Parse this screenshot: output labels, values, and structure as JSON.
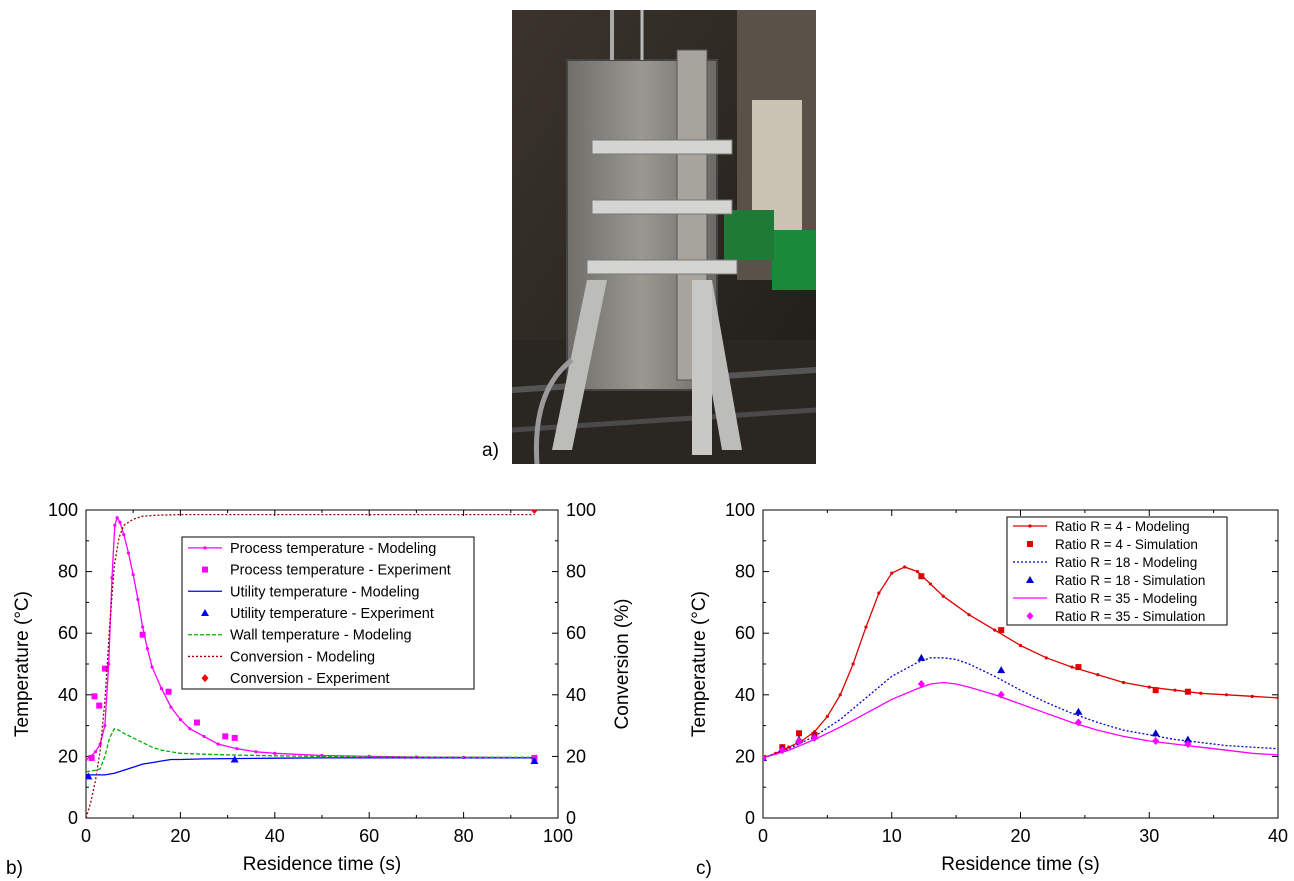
{
  "panels": {
    "a": "a)",
    "b": "b)",
    "c": "c)"
  },
  "photo": {
    "description_icon": "reactor-photo"
  },
  "chart_data": [
    {
      "id": "b",
      "type": "line",
      "xlabel": "Residence time (s)",
      "ylabel": "Temperature (°C)",
      "y2label": "Conversion (%)",
      "xlim": [
        0,
        100
      ],
      "ylim": [
        0,
        100
      ],
      "y2lim": [
        0,
        100
      ],
      "xticks": [
        0,
        20,
        40,
        60,
        80,
        100
      ],
      "yticks": [
        0,
        20,
        40,
        60,
        80,
        100
      ],
      "y2ticks": [
        0,
        20,
        40,
        60,
        80,
        100
      ],
      "legend_position": "top-right",
      "series": [
        {
          "name": "Process temperature - Modeling",
          "kind": "line",
          "color": "#ff00ff",
          "dash": "",
          "marker": "dot",
          "x": [
            0,
            1,
            2,
            3,
            4,
            4.8,
            5.5,
            6.1,
            6.6,
            7.2,
            8,
            9,
            10,
            11,
            12,
            13,
            14,
            16,
            18,
            20,
            22,
            25,
            28,
            32,
            36,
            40,
            50,
            60,
            70,
            80,
            95
          ],
          "y": [
            19,
            20,
            21.5,
            24,
            30,
            50,
            78,
            95,
            97.5,
            96,
            92,
            86,
            79,
            71,
            62,
            55,
            49,
            42,
            36,
            32,
            29,
            26.5,
            24,
            22.5,
            21.5,
            21,
            20.3,
            20,
            19.8,
            19.7,
            19.6
          ]
        },
        {
          "name": "Process temperature - Experiment",
          "kind": "scatter",
          "color": "#ff00ff",
          "marker": "square",
          "x": [
            1.2,
            1.8,
            2.8,
            4,
            12,
            17.5,
            23.5,
            29.5,
            31.5,
            95
          ],
          "y": [
            19.5,
            39.5,
            36.5,
            48.5,
            59.5,
            41,
            31,
            26.5,
            26,
            19.5
          ]
        },
        {
          "name": "Utility temperature - Modeling",
          "kind": "line",
          "color": "#0000ff",
          "dash": "",
          "x": [
            0,
            2,
            4,
            6,
            8,
            10,
            12,
            14,
            16,
            18,
            20,
            25,
            30,
            40,
            50,
            60,
            80,
            95
          ],
          "y": [
            14,
            14,
            14,
            14.5,
            15.5,
            16.5,
            17.5,
            18,
            18.5,
            19,
            19,
            19.2,
            19.3,
            19.4,
            19.5,
            19.5,
            19.5,
            19.5
          ]
        },
        {
          "name": "Utility temperature - Experiment",
          "kind": "scatter",
          "color": "#0000ff",
          "marker": "triangle",
          "x": [
            0.5,
            31.5,
            95
          ],
          "y": [
            13.5,
            19,
            18.5
          ]
        },
        {
          "name": "Wall temperature - Modeling",
          "kind": "line",
          "color": "#00b000",
          "dash": "4,2",
          "x": [
            0,
            2,
            3,
            4,
            5,
            6,
            7,
            8,
            10,
            12,
            14,
            16,
            18,
            20,
            25,
            30,
            40,
            50,
            60,
            80,
            95
          ],
          "y": [
            15,
            15.5,
            16,
            20,
            26,
            29,
            28.5,
            27.5,
            26,
            24.5,
            23,
            22,
            21.5,
            21,
            20.7,
            20.5,
            20.2,
            20,
            19.8,
            19.7,
            19.7
          ]
        },
        {
          "name": "Conversion - Modeling",
          "kind": "line",
          "color": "#a00000",
          "dash": "2,2",
          "axis": "y2",
          "x": [
            0,
            1,
            2,
            3,
            4,
            5,
            6,
            7,
            8,
            10,
            12,
            15,
            20,
            30,
            50,
            95
          ],
          "y": [
            0,
            5,
            12,
            22,
            38,
            62,
            82,
            91,
            95,
            97,
            98,
            98.3,
            98.5,
            98.5,
            98.5,
            98.5
          ]
        },
        {
          "name": "Conversion - Experiment",
          "kind": "scatter",
          "color": "#ff0000",
          "marker": "diamond",
          "axis": "y2",
          "x": [
            95
          ],
          "y": [
            100
          ]
        }
      ]
    },
    {
      "id": "c",
      "type": "line",
      "xlabel": "Residence time (s)",
      "ylabel": "Temperature (°C)",
      "xlim": [
        0,
        40
      ],
      "ylim": [
        0,
        100
      ],
      "xticks": [
        0,
        10,
        20,
        30,
        40
      ],
      "yticks": [
        0,
        20,
        40,
        60,
        80,
        100
      ],
      "legend_position": "top-right",
      "series": [
        {
          "name": "Ratio R = 4 - Modeling",
          "kind": "line",
          "color": "#e00000",
          "dash": "",
          "marker": "dot",
          "x": [
            0,
            1,
            2,
            3,
            4,
            5,
            6,
            7,
            8,
            9,
            10,
            11,
            12,
            13,
            14,
            16,
            18,
            20,
            22,
            24,
            26,
            28,
            30,
            32,
            34,
            36,
            38,
            40
          ],
          "y": [
            19.5,
            21,
            23,
            25,
            28,
            33,
            40,
            50,
            62,
            73,
            79.5,
            81.5,
            80,
            76,
            72,
            66,
            61,
            56,
            52,
            49,
            46.5,
            44,
            42.5,
            41.5,
            40.5,
            40,
            39.5,
            39
          ]
        },
        {
          "name": "Ratio R = 4 - Simulation",
          "kind": "scatter",
          "color": "#e00000",
          "marker": "square",
          "x": [
            0,
            1.5,
            2.8,
            4,
            12.3,
            18.5,
            24.5,
            30.5,
            33
          ],
          "y": [
            19.5,
            23,
            27.5,
            27,
            78.5,
            61,
            49,
            41.5,
            41
          ]
        },
        {
          "name": "Ratio R = 18 - Modeling",
          "kind": "line",
          "color": "#0000cc",
          "dash": "2,2",
          "x": [
            0,
            2,
            4,
            6,
            8,
            10,
            12,
            13,
            14,
            15,
            16,
            18,
            20,
            22,
            24,
            26,
            28,
            30,
            32,
            34,
            36,
            38,
            40
          ],
          "y": [
            19.5,
            22.5,
            26.5,
            32,
            39,
            46,
            50.5,
            52,
            52,
            51.5,
            50,
            46,
            41.5,
            37.5,
            34,
            31,
            28.5,
            27,
            25.5,
            24.5,
            23.5,
            23,
            22.5
          ]
        },
        {
          "name": "Ratio R = 18 - Simulation",
          "kind": "scatter",
          "color": "#0000cc",
          "marker": "triangle",
          "x": [
            0,
            1.5,
            2.8,
            4,
            12.3,
            18.5,
            24.5,
            30.5,
            33
          ],
          "y": [
            19.5,
            22.5,
            25.5,
            26.5,
            52,
            48,
            34.5,
            27.5,
            25.5
          ]
        },
        {
          "name": "Ratio R = 35 - Modeling",
          "kind": "line",
          "color": "#ff00ff",
          "dash": "",
          "x": [
            0,
            2,
            4,
            6,
            8,
            10,
            12,
            13,
            14,
            15,
            16,
            18,
            20,
            22,
            24,
            26,
            28,
            30,
            32,
            34,
            36,
            38,
            40
          ],
          "y": [
            19.5,
            22,
            25.5,
            29.5,
            34,
            38.5,
            42,
            43.5,
            44,
            43.5,
            42.5,
            40,
            37,
            34,
            31,
            28.5,
            26.5,
            25,
            24,
            23,
            22,
            21,
            20.5
          ]
        },
        {
          "name": "Ratio R = 35 - Simulation",
          "kind": "scatter",
          "color": "#ff00ff",
          "marker": "diamond",
          "x": [
            0,
            1.5,
            2.8,
            4,
            12.3,
            18.5,
            24.5,
            30.5,
            33
          ],
          "y": [
            19.5,
            22,
            25,
            26,
            43.5,
            40,
            31,
            25,
            24
          ]
        }
      ]
    }
  ]
}
